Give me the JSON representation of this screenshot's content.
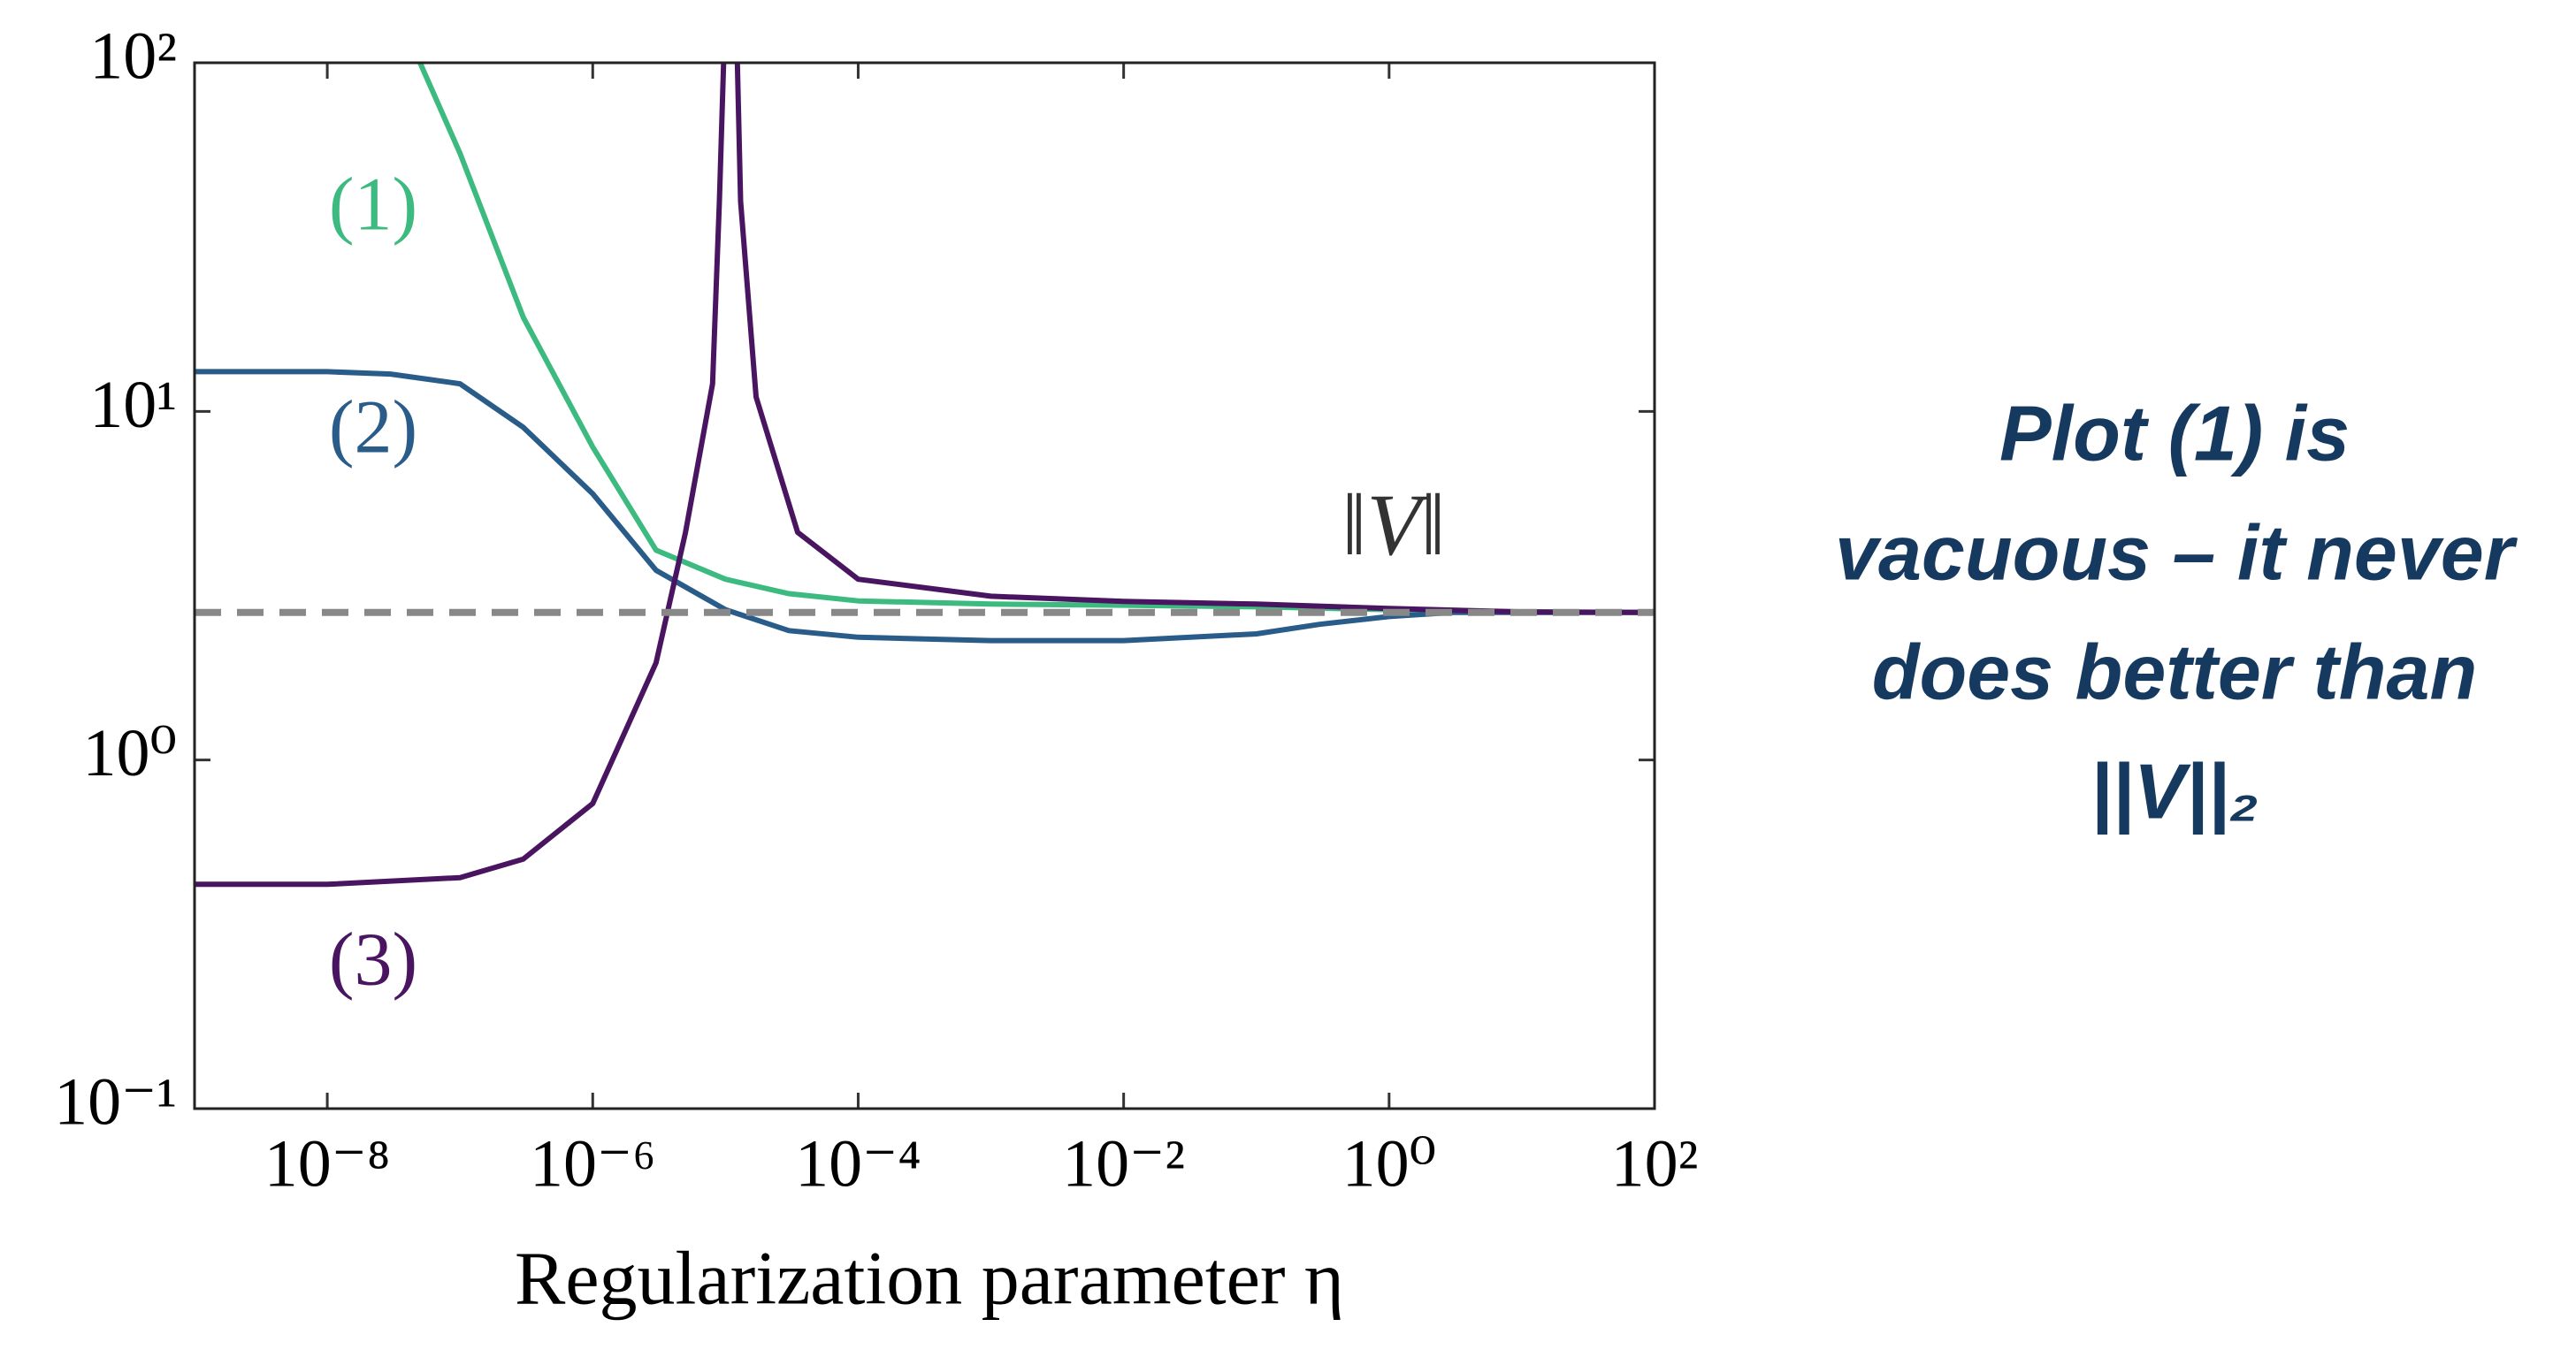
{
  "chart_data": {
    "type": "line",
    "x_label": "Regularization parameter η",
    "xscale": "log",
    "yscale": "log",
    "xlim": [
      1e-09,
      100
    ],
    "ylim": [
      0.1,
      100
    ],
    "xticks": [
      {
        "value": 1e-08,
        "label": "10⁻⁸"
      },
      {
        "value": 1e-06,
        "label": "10⁻⁶"
      },
      {
        "value": 0.0001,
        "label": "10⁻⁴"
      },
      {
        "value": 0.01,
        "label": "10⁻²"
      },
      {
        "value": 1,
        "label": "10⁰"
      },
      {
        "value": 100,
        "label": "10²"
      }
    ],
    "yticks": [
      {
        "value": 0.1,
        "label": "10⁻¹"
      },
      {
        "value": 1,
        "label": "10⁰"
      },
      {
        "value": 10,
        "label": "10¹"
      },
      {
        "value": 100,
        "label": "10²"
      }
    ],
    "series": [
      {
        "name": "(1)",
        "color": "#3dba7f",
        "dashed": false,
        "x": [
          5e-08,
          1e-07,
          3e-07,
          1e-06,
          3e-06,
          1e-05,
          3e-05,
          0.0001,
          0.001,
          0.01,
          0.1,
          1,
          10,
          100
        ],
        "values": [
          100,
          55,
          18.6,
          7.9,
          4.0,
          3.3,
          3.0,
          2.86,
          2.8,
          2.78,
          2.75,
          2.7,
          2.66,
          2.65
        ]
      },
      {
        "name": "(2)",
        "color": "#2a5c8a",
        "dashed": false,
        "x": [
          1e-09,
          1e-08,
          3e-08,
          1e-07,
          3e-07,
          1e-06,
          3e-06,
          1e-05,
          3e-05,
          0.0001,
          0.001,
          0.01,
          0.1,
          0.3,
          1,
          3,
          10,
          100
        ],
        "values": [
          13,
          13,
          12.8,
          12,
          9,
          5.8,
          3.5,
          2.7,
          2.35,
          2.25,
          2.2,
          2.2,
          2.3,
          2.45,
          2.58,
          2.65,
          2.65,
          2.65
        ]
      },
      {
        "name": "(3)",
        "color": "#4a1560",
        "dashed": false,
        "x": [
          1e-09,
          1e-08,
          1e-07,
          3e-07,
          1e-06,
          3e-06,
          5e-06,
          8e-06,
          9e-06,
          1e-05,
          1.2e-05,
          1.3e-05,
          1.7e-05,
          3.5e-05,
          0.0001,
          0.001,
          0.01,
          0.1,
          1,
          10,
          100
        ],
        "values": [
          0.44,
          0.44,
          0.46,
          0.52,
          0.75,
          1.9,
          4.5,
          12,
          40,
          150,
          150,
          40,
          11,
          4.5,
          3.3,
          2.95,
          2.85,
          2.8,
          2.72,
          2.66,
          2.65
        ]
      },
      {
        "name": "‖V‖",
        "color": "#888888",
        "dashed": true,
        "x": [
          1e-09,
          100
        ],
        "values": [
          2.65,
          2.65
        ]
      }
    ]
  },
  "note": {
    "lines": [
      "Plot (1) is",
      "vacuous – it never",
      "does better than",
      "||V||₂"
    ],
    "color": "#163a5f"
  }
}
